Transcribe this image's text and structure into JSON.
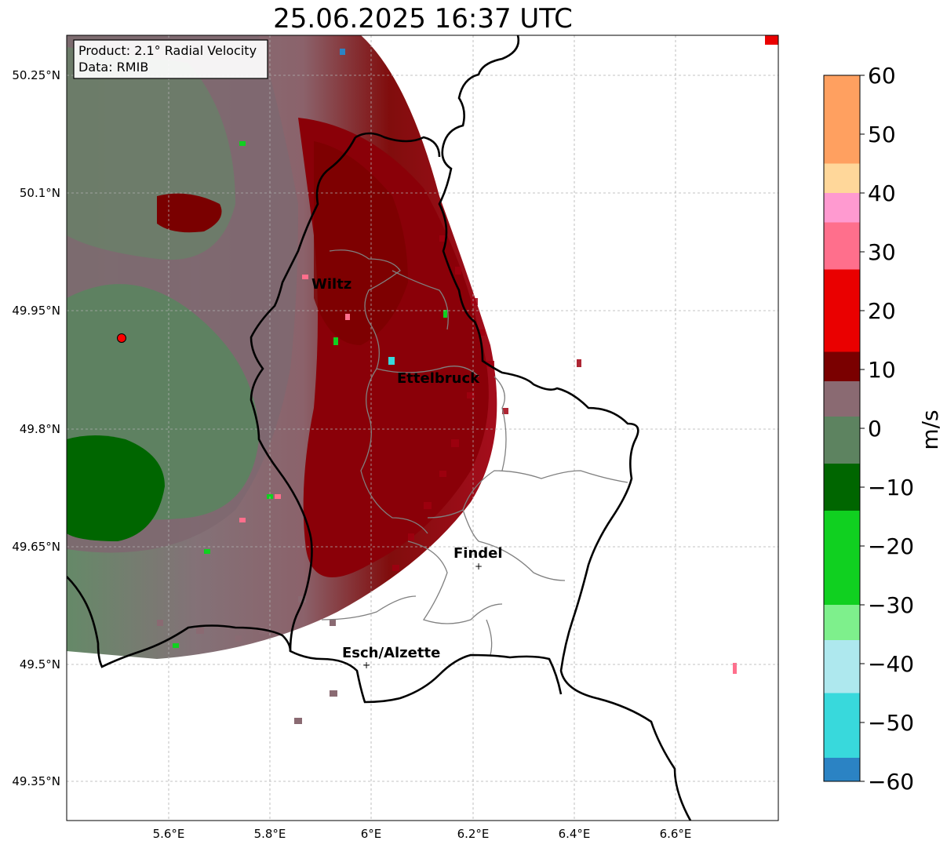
{
  "title": "25.06.2025 16:37 UTC",
  "info_box": {
    "product": "Product: 2.1° Radial Velocity",
    "source": "Data: RMIB"
  },
  "axes": {
    "lon_ticks": [
      "5.6°E",
      "5.8°E",
      "6°E",
      "6.2°E",
      "6.4°E",
      "6.6°E"
    ],
    "lat_ticks": [
      "50.25°N",
      "50.1°N",
      "49.95°N",
      "49.8°N",
      "49.65°N",
      "49.5°N",
      "49.35°N"
    ],
    "grid": true
  },
  "cities": [
    {
      "name": "Wiltz"
    },
    {
      "name": "Ettelbruck"
    },
    {
      "name": "Findel"
    },
    {
      "name": "Esch/Alzette"
    }
  ],
  "colorbar": {
    "label": "m/s",
    "ticks": [
      "60",
      "50",
      "40",
      "30",
      "20",
      "10",
      "0",
      "−10",
      "−20",
      "−30",
      "−40",
      "−50",
      "−60"
    ],
    "range": [
      -60,
      60
    ],
    "colors": {
      "neg_far": "#2b83c4",
      "cyan": "#38d9dc",
      "light_cyan": "#aee8ee",
      "light_green": "#7ef08c",
      "green": "#10d020",
      "dark_green": "#006600",
      "gray_green": "#5d8360",
      "gray_mauve": "#8a6a72",
      "dark_red": "#7a0000",
      "red": "#ea0000",
      "pink": "#ff6f8c",
      "light_pink": "#ff9ad0",
      "peach": "#ffd79a",
      "orange": "#ffa060"
    }
  },
  "colors": {
    "border": "#000000",
    "admin": "#808080",
    "radar_site": "#ff0000"
  }
}
